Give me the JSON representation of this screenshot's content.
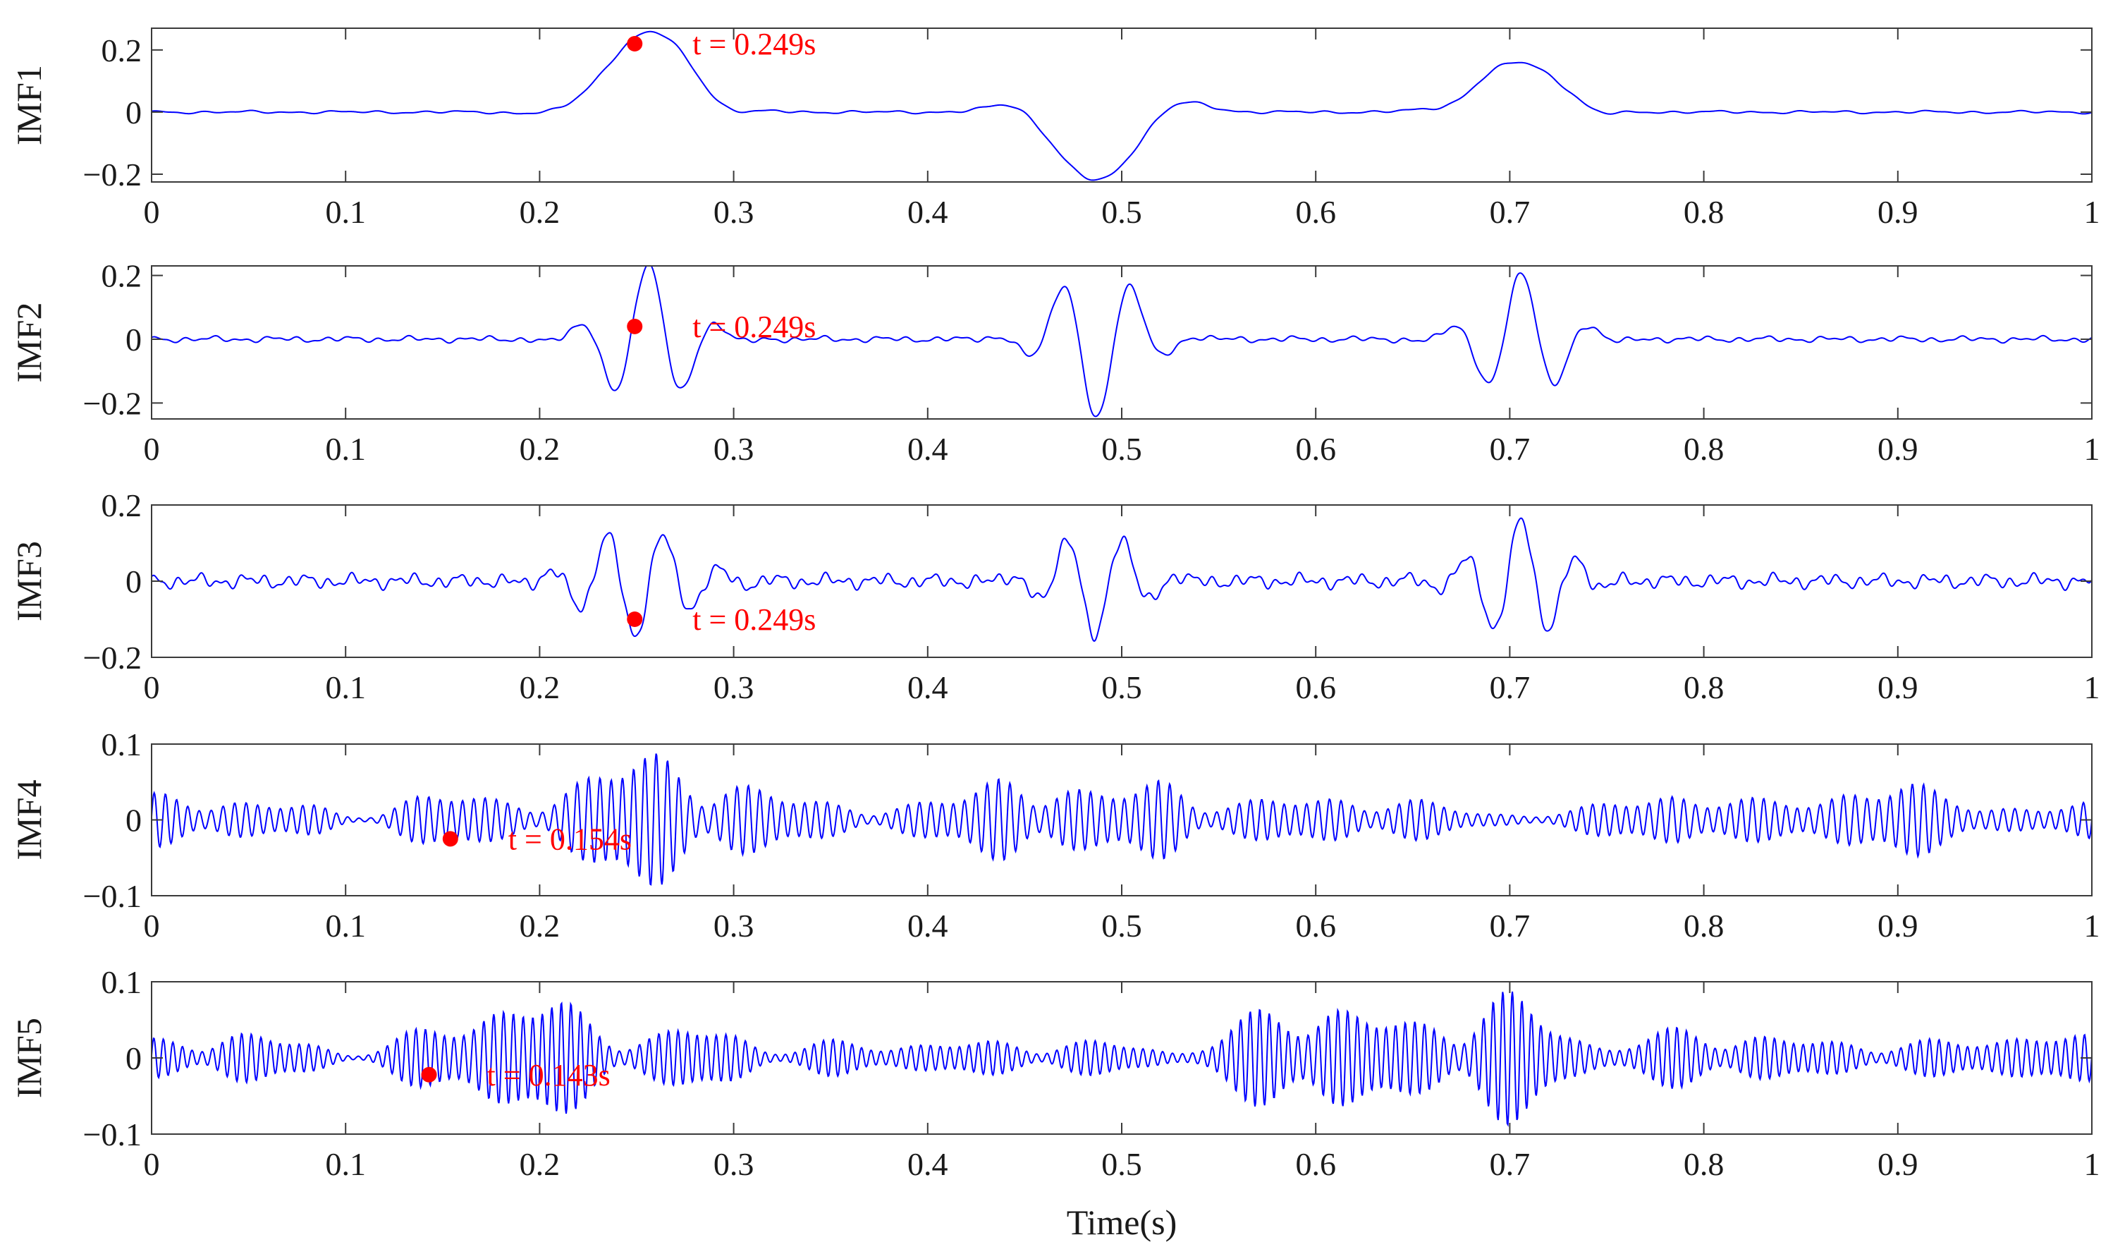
{
  "chart_data": {
    "type": "line",
    "xlabel": "Time(s)",
    "x_range": [
      0,
      1
    ],
    "x_ticks": [
      0,
      0.1,
      0.2,
      0.3,
      0.4,
      0.5,
      0.6,
      0.7,
      0.8,
      0.9,
      1
    ],
    "x_tick_labels": [
      "0",
      "0.1",
      "0.2",
      "0.3",
      "0.4",
      "0.5",
      "0.6",
      "0.7",
      "0.8",
      "0.9",
      "1"
    ],
    "line_color": "#0000ff",
    "marker_color": "#ff0000",
    "panels": [
      {
        "name": "IMF1",
        "ylabel": "IMF1",
        "ylim": [
          -0.225,
          0.27
        ],
        "y_ticks": [
          -0.2,
          0,
          0.2
        ],
        "y_tick_labels": [
          "−0.2",
          "0",
          "0.2"
        ],
        "annotation": {
          "t": 0.249,
          "y": 0.22,
          "label": "t = 0.249s"
        },
        "signal": {
          "noise": 0.004,
          "noise_freq": 45,
          "waves": [
            {
              "center": 0.218,
              "amp": -0.022,
              "width": 0.018,
              "freq": 0
            },
            {
              "center": 0.257,
              "amp": 0.26,
              "width": 0.023,
              "freq": 0
            },
            {
              "center": 0.293,
              "amp": -0.045,
              "width": 0.012,
              "freq": 0
            },
            {
              "center": 0.445,
              "amp": 0.04,
              "width": 0.012,
              "freq": 0
            },
            {
              "center": 0.487,
              "amp": -0.22,
              "width": 0.02,
              "freq": 0
            },
            {
              "center": 0.527,
              "amp": 0.05,
              "width": 0.014,
              "freq": 0
            },
            {
              "center": 0.672,
              "amp": -0.02,
              "width": 0.01,
              "freq": 0
            },
            {
              "center": 0.704,
              "amp": 0.16,
              "width": 0.022,
              "freq": 0
            },
            {
              "center": 0.745,
              "amp": -0.025,
              "width": 0.01,
              "freq": 0
            }
          ]
        }
      },
      {
        "name": "IMF2",
        "ylabel": "IMF2",
        "ylim": [
          -0.25,
          0.23
        ],
        "y_ticks": [
          -0.2,
          0,
          0.2
        ],
        "y_tick_labels": [
          "−0.2",
          "0",
          "0.2"
        ],
        "annotation": {
          "t": 0.249,
          "y": 0.04,
          "label": "t = 0.249s"
        },
        "signal": {
          "noise": 0.008,
          "noise_freq": 70,
          "waves": [
            {
              "center": 0.256,
              "amp": 0.24,
              "width": 0.02,
              "freq": 27,
              "phase": 0
            },
            {
              "center": 0.487,
              "amp": -0.25,
              "width": 0.02,
              "freq": 27,
              "phase": 0
            },
            {
              "center": 0.706,
              "amp": 0.21,
              "width": 0.02,
              "freq": 27,
              "phase": 0
            }
          ]
        }
      },
      {
        "name": "IMF3",
        "ylabel": "IMF3",
        "ylim": [
          -0.2,
          0.2
        ],
        "y_ticks": [
          -0.2,
          0,
          0.2
        ],
        "y_tick_labels": [
          "−0.2",
          "0",
          "0.2"
        ],
        "annotation": {
          "t": 0.249,
          "y": -0.1,
          "label": "t = 0.249s"
        },
        "signal": {
          "noise": 0.016,
          "noise_freq": 90,
          "waves": [
            {
              "center": 0.249,
              "amp": -0.145,
              "width": 0.024,
              "freq": 34,
              "phase": 0
            },
            {
              "center": 0.486,
              "amp": -0.15,
              "width": 0.02,
              "freq": 34,
              "phase": 0
            },
            {
              "center": 0.706,
              "amp": 0.16,
              "width": 0.02,
              "freq": 34,
              "phase": 0
            }
          ]
        }
      },
      {
        "name": "IMF4",
        "ylabel": "IMF4",
        "ylim": [
          -0.1,
          0.1
        ],
        "y_ticks": [
          -0.1,
          0,
          0.1
        ],
        "y_tick_labels": [
          "−0.1",
          "0",
          "0.1"
        ],
        "annotation": {
          "t": 0.154,
          "y": -0.025,
          "label": "t = 0.154s"
        },
        "signal": {
          "carrier_freq": 170,
          "base_env": 0.02,
          "env_bumps": [
            {
              "center": 0.02,
              "amp": 0.015,
              "width": 0.02
            },
            {
              "center": 0.145,
              "amp": 0.015,
              "width": 0.015
            },
            {
              "center": 0.26,
              "amp": 0.06,
              "width": 0.035
            },
            {
              "center": 0.45,
              "amp": 0.045,
              "width": 0.02
            },
            {
              "center": 0.52,
              "amp": 0.035,
              "width": 0.015
            },
            {
              "center": 0.62,
              "amp": 0.012,
              "width": 0.03
            },
            {
              "center": 0.79,
              "amp": 0.02,
              "width": 0.02
            },
            {
              "center": 0.89,
              "amp": 0.035,
              "width": 0.02
            }
          ],
          "env_dips": [
            {
              "center": 0.105,
              "depth": 0.015,
              "width": 0.012
            },
            {
              "center": 0.7,
              "depth": 0.012,
              "width": 0.03
            }
          ]
        }
      },
      {
        "name": "IMF5",
        "ylabel": "IMF5",
        "ylim": [
          -0.1,
          0.1
        ],
        "y_ticks": [
          -0.1,
          0,
          0.1
        ],
        "y_tick_labels": [
          "−0.1",
          "0",
          "0.1"
        ],
        "annotation": {
          "t": 0.143,
          "y": -0.022,
          "label": "t = 0.143s"
        },
        "signal": {
          "carrier_freq": 200,
          "base_env": 0.02,
          "env_bumps": [
            {
              "center": 0.04,
              "amp": 0.012,
              "width": 0.02
            },
            {
              "center": 0.19,
              "amp": 0.06,
              "width": 0.03
            },
            {
              "center": 0.29,
              "amp": 0.02,
              "width": 0.02
            },
            {
              "center": 0.6,
              "amp": 0.055,
              "width": 0.03
            },
            {
              "center": 0.695,
              "amp": 0.055,
              "width": 0.025
            },
            {
              "center": 0.8,
              "amp": 0.015,
              "width": 0.03
            },
            {
              "center": 0.97,
              "amp": 0.015,
              "width": 0.02
            }
          ],
          "env_dips": [
            {
              "center": 0.105,
              "depth": 0.015,
              "width": 0.012
            },
            {
              "center": 0.32,
              "depth": 0.015,
              "width": 0.012
            },
            {
              "center": 0.53,
              "depth": 0.015,
              "width": 0.012
            },
            {
              "center": 0.75,
              "depth": 0.012,
              "width": 0.012
            }
          ]
        }
      }
    ]
  }
}
